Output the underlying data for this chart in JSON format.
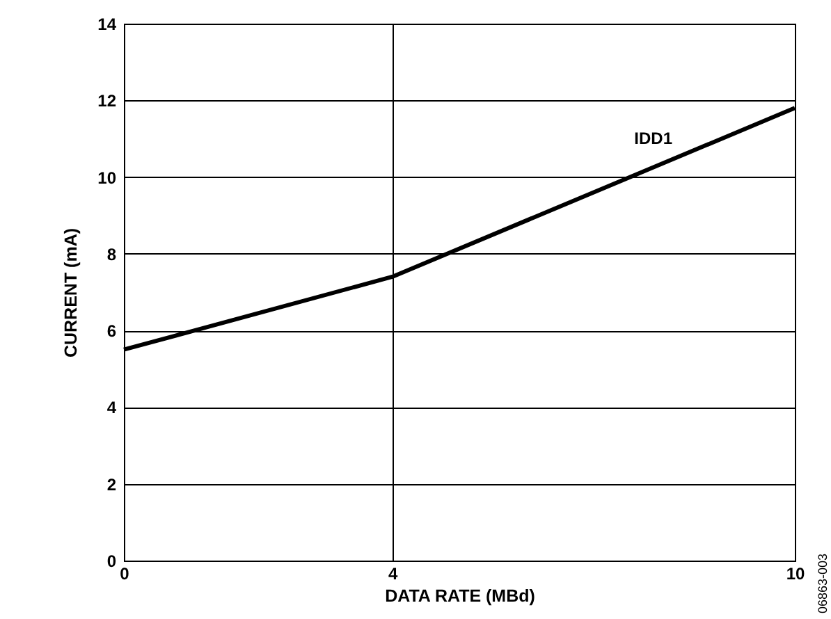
{
  "chart_data": {
    "type": "line",
    "xlabel": "DATA RATE (MBd)",
    "ylabel": "CURRENT (mA)",
    "x": [
      0,
      4,
      10
    ],
    "series": [
      {
        "name": "IDD1",
        "color": "#000000",
        "values": [
          5.5,
          7.4,
          11.8
        ]
      }
    ],
    "xlim": [
      0,
      10
    ],
    "xticks": [
      0,
      4,
      10
    ],
    "ylim": [
      0,
      14
    ],
    "yticks": [
      0,
      2,
      4,
      6,
      8,
      10,
      12,
      14
    ],
    "grid": true,
    "marker": "none",
    "line_style": "solid",
    "legend": false,
    "annotations": [
      "06863-003"
    ]
  }
}
